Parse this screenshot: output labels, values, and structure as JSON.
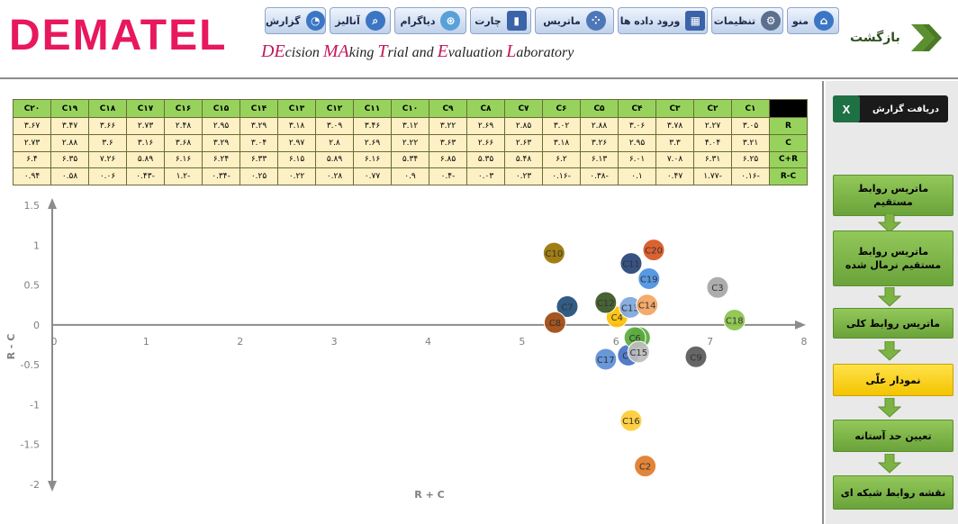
{
  "header": {
    "logo": "DEMATEL",
    "subtitle": [
      {
        "hl": "DE",
        "rest": "cision "
      },
      {
        "hl": "MA",
        "rest": "king "
      },
      {
        "hl": "T",
        "rest": "rial and "
      },
      {
        "hl": "E",
        "rest": "valuation "
      },
      {
        "hl": "L",
        "rest": "aboratory"
      }
    ],
    "back_label": "بازگشت"
  },
  "toolbar": [
    {
      "name": "toolbar-menu-button",
      "label": "منو",
      "icon": "home-icon",
      "color": "#3b76c4",
      "glyph": "⌂"
    },
    {
      "name": "toolbar-settings-button",
      "label": "تنظیمات",
      "icon": "gears-icon",
      "color": "#5b6f8e",
      "glyph": "⚙"
    },
    {
      "name": "toolbar-data-entry-button",
      "label": "ورود داده ها",
      "icon": "grid-icon",
      "color": "#3a63a8",
      "glyph": "▦"
    },
    {
      "name": "toolbar-matrix-button",
      "label": "ماتریس",
      "icon": "matrix-dots-icon",
      "color": "#4d78b8",
      "glyph": "⁘"
    },
    {
      "name": "toolbar-chart-button",
      "label": "چارت",
      "icon": "bar-chart-icon",
      "color": "#3a63a8",
      "glyph": "▮"
    },
    {
      "name": "toolbar-diagram-button",
      "label": "دیاگرام",
      "icon": "venn-icon",
      "color": "#5aa0d8",
      "glyph": "⊛"
    },
    {
      "name": "toolbar-analysis-button",
      "label": "آنالیز",
      "icon": "magnifier-icon",
      "color": "#3b76c4",
      "glyph": "⌕"
    },
    {
      "name": "toolbar-report-button",
      "label": "گزارش",
      "icon": "pie-chart-icon",
      "color": "#3b76c4",
      "glyph": "◔"
    }
  ],
  "table": {
    "columns": [
      "C۱",
      "C۲",
      "C۳",
      "C۴",
      "C۵",
      "C۶",
      "C۷",
      "C۸",
      "C۹",
      "C۱۰",
      "C۱۱",
      "C۱۲",
      "C۱۳",
      "C۱۴",
      "C۱۵",
      "C۱۶",
      "C۱۷",
      "C۱۸",
      "C۱۹",
      "C۲۰"
    ],
    "rows": [
      {
        "label": "R",
        "values": [
          "۳.۰۵",
          "۲.۲۷",
          "۳.۷۸",
          "۳.۰۶",
          "۲.۸۸",
          "۳.۰۲",
          "۲.۸۵",
          "۲.۶۹",
          "۳.۲۲",
          "۳.۱۲",
          "۳.۴۶",
          "۳.۰۹",
          "۳.۱۸",
          "۳.۲۹",
          "۲.۹۵",
          "۲.۴۸",
          "۲.۷۳",
          "۳.۶۶",
          "۳.۴۷",
          "۳.۶۷"
        ]
      },
      {
        "label": "C",
        "values": [
          "۳.۲۱",
          "۴.۰۴",
          "۳.۳",
          "۲.۹۵",
          "۳.۲۶",
          "۳.۱۸",
          "۲.۶۳",
          "۲.۶۶",
          "۳.۶۳",
          "۲.۲۲",
          "۲.۶۹",
          "۲.۸",
          "۲.۹۷",
          "۳.۰۴",
          "۳.۲۹",
          "۳.۶۸",
          "۳.۱۶",
          "۳.۶",
          "۲.۸۸",
          "۲.۷۳"
        ]
      },
      {
        "label": "C+R",
        "values": [
          "۶.۲۵",
          "۶.۳۱",
          "۷.۰۸",
          "۶.۰۱",
          "۶.۱۳",
          "۶.۲",
          "۵.۴۸",
          "۵.۳۵",
          "۶.۸۵",
          "۵.۳۴",
          "۶.۱۶",
          "۵.۸۹",
          "۶.۱۵",
          "۶.۳۳",
          "۶.۲۴",
          "۶.۱۶",
          "۵.۸۹",
          "۷.۲۶",
          "۶.۳۵",
          "۶.۴"
        ]
      },
      {
        "label": "R-C",
        "values": [
          "-۰.۱۶",
          "-۱.۷۷",
          "۰.۴۷",
          "۰.۱",
          "-۰.۳۸",
          "-۰.۱۶",
          "۰.۲۳",
          "۰.۰۳",
          "-۰.۴",
          "۰.۹",
          "۰.۷۷",
          "۰.۲۸",
          "۰.۲۲",
          "۰.۲۵",
          "-۰.۳۴",
          "-۱.۲",
          "-۰.۴۳",
          "۰.۰۶",
          "۰.۵۸",
          "۰.۹۴"
        ]
      }
    ]
  },
  "chart_data": {
    "type": "scatter",
    "xlabel": "R + C",
    "ylabel": "R - C",
    "xlim": [
      0,
      8
    ],
    "ylim": [
      -2,
      1.5
    ],
    "xticks": [
      "0",
      "1",
      "2",
      "3",
      "4",
      "5",
      "6",
      "7",
      "8"
    ],
    "yticks": [
      "1.5",
      "1",
      "0.5",
      "0",
      "-0.5",
      "-1",
      "-1.5",
      "-2"
    ],
    "points": [
      {
        "label": "C1",
        "x": 6.25,
        "y": -0.16,
        "color": "#5aaa3e"
      },
      {
        "label": "C2",
        "x": 6.31,
        "y": -1.77,
        "color": "#e07b28"
      },
      {
        "label": "C3",
        "x": 7.08,
        "y": 0.47,
        "color": "#a6a6a6"
      },
      {
        "label": "C4",
        "x": 6.01,
        "y": 0.1,
        "color": "#ffc000"
      },
      {
        "label": "C5",
        "x": 6.13,
        "y": -0.38,
        "color": "#4472c4"
      },
      {
        "label": "C6",
        "x": 6.2,
        "y": -0.16,
        "color": "#5aaa3e"
      },
      {
        "label": "C7",
        "x": 5.48,
        "y": 0.23,
        "color": "#1f4e79"
      },
      {
        "label": "C8",
        "x": 5.35,
        "y": 0.03,
        "color": "#9e480e"
      },
      {
        "label": "C9",
        "x": 6.85,
        "y": -0.4,
        "color": "#595959"
      },
      {
        "label": "C10",
        "x": 5.34,
        "y": 0.9,
        "color": "#997300"
      },
      {
        "label": "C11",
        "x": 6.16,
        "y": 0.77,
        "color": "#264478"
      },
      {
        "label": "C12",
        "x": 5.89,
        "y": 0.28,
        "color": "#375623"
      },
      {
        "label": "C13",
        "x": 6.15,
        "y": 0.22,
        "color": "#7ea6dc"
      },
      {
        "label": "C14",
        "x": 6.33,
        "y": 0.25,
        "color": "#f4a460"
      },
      {
        "label": "C15",
        "x": 6.24,
        "y": -0.34,
        "color": "#bdbdbd"
      },
      {
        "label": "C16",
        "x": 6.16,
        "y": -1.2,
        "color": "#ffcc33"
      },
      {
        "label": "C17",
        "x": 5.89,
        "y": -0.43,
        "color": "#5b8fd6"
      },
      {
        "label": "C18",
        "x": 7.26,
        "y": 0.06,
        "color": "#8bc34a"
      },
      {
        "label": "C19",
        "x": 6.35,
        "y": 0.58,
        "color": "#4a90e2"
      },
      {
        "label": "C20",
        "x": 6.4,
        "y": 0.94,
        "color": "#d9541e"
      }
    ]
  },
  "sidebar": {
    "report_label": "دریافت گزارش",
    "report_icon": "excel-icon",
    "excel_glyph": "X",
    "steps": [
      {
        "name": "step-direct-matrix",
        "label": "ماتریس روابط مستقیم",
        "active": false
      },
      {
        "name": "step-normalized-matrix",
        "label": "ماتریس روابط مستقیم نرمال شده",
        "active": false
      },
      {
        "name": "step-total-matrix",
        "label": "ماتریس روابط کلی",
        "active": false
      },
      {
        "name": "step-causal-diagram",
        "label": "نمودار علّی",
        "active": true
      },
      {
        "name": "step-threshold",
        "label": "تعیین حد آستانه",
        "active": false
      },
      {
        "name": "step-network-map",
        "label": "نقشه روابط شبکه ای",
        "active": false
      }
    ]
  }
}
